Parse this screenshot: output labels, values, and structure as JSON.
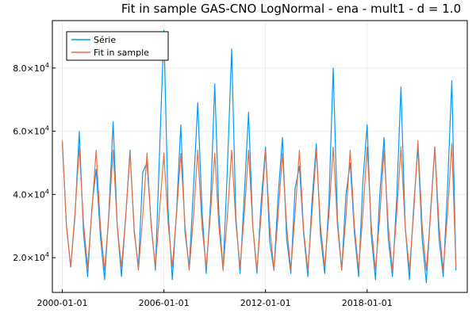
{
  "chart_data": {
    "type": "line",
    "title": "Fit in sample GAS-CNO LogNormal - ena - mult1 - d = 1.0",
    "xlabel": "",
    "ylabel": "",
    "x_range": [
      "1999-06-01",
      "2023-12-01"
    ],
    "ylim": [
      9000,
      95000
    ],
    "grid": true,
    "legend_position": "top-left",
    "x_ticks": [
      {
        "date": "2000-01-01",
        "label": "2000-01-01"
      },
      {
        "date": "2006-01-01",
        "label": "2006-01-01"
      },
      {
        "date": "2012-01-01",
        "label": "2012-01-01"
      },
      {
        "date": "2018-01-01",
        "label": "2018-01-01"
      }
    ],
    "y_ticks": [
      {
        "value": 20000,
        "mantissa": "2.0",
        "exponent": "4"
      },
      {
        "value": 40000,
        "mantissa": "4.0",
        "exponent": "4"
      },
      {
        "value": 60000,
        "mantissa": "6.0",
        "exponent": "4"
      },
      {
        "value": 80000,
        "mantissa": "8.0",
        "exponent": "4"
      }
    ],
    "series": [
      {
        "name": "Série",
        "color": "#009AFA",
        "x": [
          "2000-01-01",
          "2000-04-01",
          "2000-07-01",
          "2000-10-01",
          "2001-01-01",
          "2001-04-01",
          "2001-07-01",
          "2001-10-01",
          "2002-01-01",
          "2002-04-01",
          "2002-07-01",
          "2002-10-01",
          "2003-01-01",
          "2003-04-01",
          "2003-07-01",
          "2003-10-01",
          "2004-01-01",
          "2004-04-01",
          "2004-07-01",
          "2004-10-01",
          "2005-01-01",
          "2005-04-01",
          "2005-07-01",
          "2005-10-01",
          "2006-01-01",
          "2006-04-01",
          "2006-07-01",
          "2006-10-01",
          "2007-01-01",
          "2007-04-01",
          "2007-07-01",
          "2007-10-01",
          "2008-01-01",
          "2008-04-01",
          "2008-07-01",
          "2008-10-01",
          "2009-01-01",
          "2009-04-01",
          "2009-07-01",
          "2009-10-01",
          "2010-01-01",
          "2010-04-01",
          "2010-07-01",
          "2010-10-01",
          "2011-01-01",
          "2011-04-01",
          "2011-07-01",
          "2011-10-01",
          "2012-01-01",
          "2012-04-01",
          "2012-07-01",
          "2012-10-01",
          "2013-01-01",
          "2013-04-01",
          "2013-07-01",
          "2013-10-01",
          "2014-01-01",
          "2014-04-01",
          "2014-07-01",
          "2014-10-01",
          "2015-01-01",
          "2015-04-01",
          "2015-07-01",
          "2015-10-01",
          "2016-01-01",
          "2016-04-01",
          "2016-07-01",
          "2016-10-01",
          "2017-01-01",
          "2017-04-01",
          "2017-07-01",
          "2017-10-01",
          "2018-01-01",
          "2018-04-01",
          "2018-07-01",
          "2018-10-01",
          "2019-01-01",
          "2019-04-01",
          "2019-07-01",
          "2019-10-01",
          "2020-01-01",
          "2020-04-01",
          "2020-07-01",
          "2020-10-01",
          "2021-01-01",
          "2021-04-01",
          "2021-07-01",
          "2021-10-01",
          "2022-01-01",
          "2022-04-01",
          "2022-07-01",
          "2022-10-01",
          "2023-01-01",
          "2023-04-01"
        ],
        "values": [
          57000,
          30000,
          17000,
          33000,
          60000,
          28000,
          14000,
          36000,
          48000,
          27000,
          13000,
          34000,
          63000,
          30000,
          14000,
          33000,
          54000,
          28000,
          17000,
          47000,
          50000,
          31000,
          16000,
          54000,
          92000,
          35000,
          13000,
          35000,
          62000,
          28000,
          17000,
          42000,
          69000,
          35000,
          15000,
          37000,
          75000,
          34000,
          16000,
          48000,
          86000,
          33000,
          15000,
          40000,
          66000,
          30000,
          15000,
          38000,
          55000,
          25000,
          16000,
          40000,
          58000,
          26000,
          15000,
          42000,
          49000,
          28000,
          14000,
          38000,
          56000,
          27000,
          15000,
          38000,
          80000,
          32000,
          16000,
          40000,
          50000,
          28000,
          14000,
          44000,
          62000,
          27000,
          13000,
          40000,
          58000,
          26000,
          14000,
          39000,
          74000,
          30000,
          13000,
          36000,
          55000,
          26000,
          12000,
          35000,
          55000,
          26000,
          14000,
          42000,
          76000,
          16000
        ]
      },
      {
        "name": "Fit in sample",
        "color": "#E26F46",
        "x": [
          "2000-01-01",
          "2000-04-01",
          "2000-07-01",
          "2000-10-01",
          "2001-01-01",
          "2001-04-01",
          "2001-07-01",
          "2001-10-01",
          "2002-01-01",
          "2002-04-01",
          "2002-07-01",
          "2002-10-01",
          "2003-01-01",
          "2003-04-01",
          "2003-07-01",
          "2003-10-01",
          "2004-01-01",
          "2004-04-01",
          "2004-07-01",
          "2004-10-01",
          "2005-01-01",
          "2005-04-01",
          "2005-07-01",
          "2005-10-01",
          "2006-01-01",
          "2006-04-01",
          "2006-07-01",
          "2006-10-01",
          "2007-01-01",
          "2007-04-01",
          "2007-07-01",
          "2007-10-01",
          "2008-01-01",
          "2008-04-01",
          "2008-07-01",
          "2008-10-01",
          "2009-01-01",
          "2009-04-01",
          "2009-07-01",
          "2009-10-01",
          "2010-01-01",
          "2010-04-01",
          "2010-07-01",
          "2010-10-01",
          "2011-01-01",
          "2011-04-01",
          "2011-07-01",
          "2011-10-01",
          "2012-01-01",
          "2012-04-01",
          "2012-07-01",
          "2012-10-01",
          "2013-01-01",
          "2013-04-01",
          "2013-07-01",
          "2013-10-01",
          "2014-01-01",
          "2014-04-01",
          "2014-07-01",
          "2014-10-01",
          "2015-01-01",
          "2015-04-01",
          "2015-07-01",
          "2015-10-01",
          "2016-01-01",
          "2016-04-01",
          "2016-07-01",
          "2016-10-01",
          "2017-01-01",
          "2017-04-01",
          "2017-07-01",
          "2017-10-01",
          "2018-01-01",
          "2018-04-01",
          "2018-07-01",
          "2018-10-01",
          "2019-01-01",
          "2019-04-01",
          "2019-07-01",
          "2019-10-01",
          "2020-01-01",
          "2020-04-01",
          "2020-07-01",
          "2020-10-01",
          "2021-01-01",
          "2021-04-01",
          "2021-07-01",
          "2021-10-01",
          "2022-01-01",
          "2022-04-01",
          "2022-07-01",
          "2022-10-01",
          "2023-01-01",
          "2023-04-01"
        ],
        "values": [
          57000,
          30000,
          17000,
          34000,
          55000,
          31000,
          17000,
          35000,
          54000,
          30000,
          16000,
          33000,
          54000,
          30000,
          17000,
          33000,
          53000,
          29000,
          16000,
          33000,
          53000,
          30000,
          17000,
          35000,
          53000,
          31000,
          17000,
          34000,
          53000,
          30000,
          16000,
          33000,
          54000,
          30000,
          17000,
          34000,
          53000,
          30000,
          16000,
          33000,
          54000,
          31000,
          17000,
          34000,
          54000,
          30000,
          16000,
          34000,
          54000,
          30000,
          16000,
          34000,
          53000,
          30000,
          16000,
          34000,
          54000,
          29000,
          16000,
          34000,
          54000,
          30000,
          17000,
          34000,
          55000,
          30000,
          16000,
          33000,
          54000,
          30000,
          16000,
          34000,
          55000,
          30000,
          16000,
          33000,
          54000,
          30000,
          16000,
          34000,
          55000,
          30000,
          16000,
          34000,
          57000,
          30000,
          16000,
          34000,
          55000,
          30000,
          16000,
          34000,
          56000,
          17000
        ]
      }
    ]
  }
}
